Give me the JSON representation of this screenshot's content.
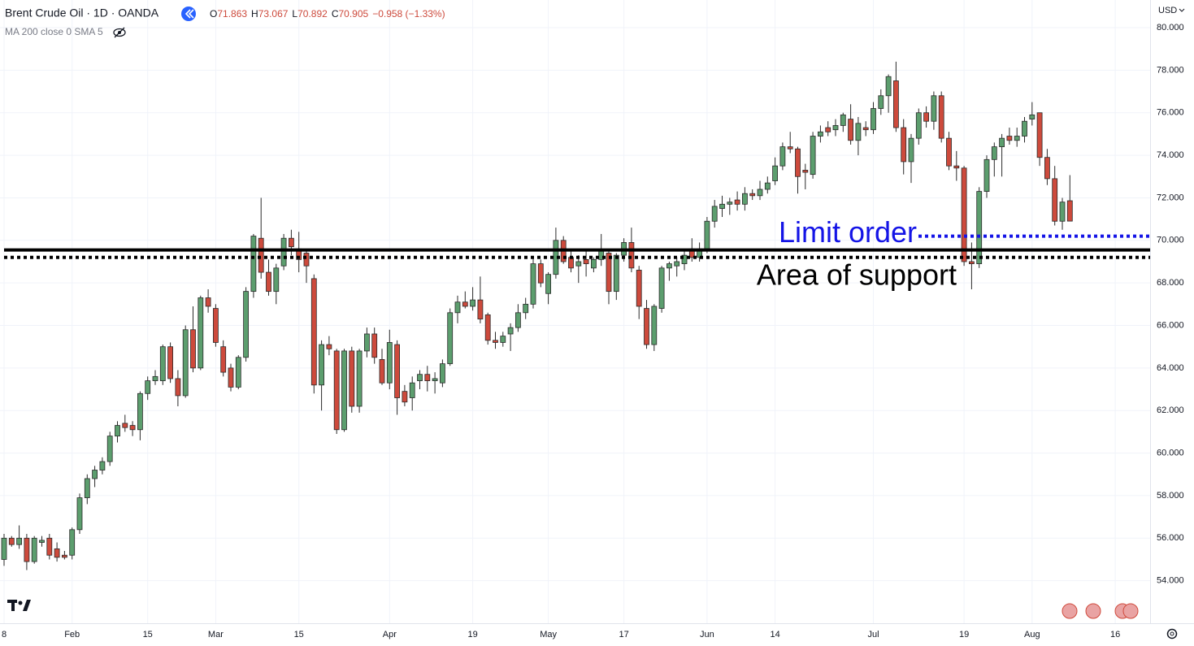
{
  "chart_data": {
    "type": "candlestick",
    "title": "Brent Crude Oil · 1D · OANDA",
    "legend_items": [
      "O",
      "71.863",
      "H",
      "73.067",
      "L",
      "70.892",
      "C",
      "70.905",
      "−0.958 (−1.33%)"
    ],
    "indicator": "MA 200 close 0 SMA 5",
    "currency": "USD",
    "up_color": "#5c9e6e",
    "down_color": "#cd4a3c",
    "border_color": "#2a2a2a",
    "candles": [
      [
        55.0,
        56.2,
        54.7,
        56.0
      ],
      [
        56.0,
        56.1,
        55.6,
        55.7
      ],
      [
        55.7,
        56.6,
        55.5,
        56.0
      ],
      [
        56.0,
        56.2,
        54.5,
        54.9
      ],
      [
        54.9,
        56.1,
        54.8,
        56.0
      ],
      [
        55.8,
        56.1,
        55.6,
        55.9
      ],
      [
        56.0,
        56.2,
        55.0,
        55.2
      ],
      [
        55.5,
        55.8,
        54.9,
        55.1
      ],
      [
        55.2,
        55.4,
        55.0,
        55.1
      ],
      [
        55.2,
        56.5,
        55.0,
        56.4
      ],
      [
        56.4,
        58.1,
        56.2,
        57.9
      ],
      [
        57.9,
        59.0,
        57.6,
        58.8
      ],
      [
        58.8,
        59.4,
        58.4,
        59.2
      ],
      [
        59.2,
        59.8,
        59.0,
        59.6
      ],
      [
        59.6,
        61.0,
        59.4,
        60.8
      ],
      [
        60.8,
        61.5,
        60.5,
        61.3
      ],
      [
        61.4,
        61.8,
        61.0,
        61.2
      ],
      [
        61.3,
        61.5,
        60.8,
        61.1
      ],
      [
        61.1,
        62.9,
        60.6,
        62.8
      ],
      [
        62.8,
        63.6,
        62.5,
        63.4
      ],
      [
        63.4,
        63.9,
        63.2,
        63.6
      ],
      [
        63.4,
        65.1,
        63.2,
        65.0
      ],
      [
        65.0,
        65.2,
        63.3,
        63.5
      ],
      [
        63.5,
        63.9,
        62.2,
        62.7
      ],
      [
        62.7,
        66.0,
        62.6,
        65.8
      ],
      [
        65.8,
        66.9,
        63.8,
        64.0
      ],
      [
        64.0,
        67.4,
        63.9,
        67.3
      ],
      [
        67.3,
        67.7,
        66.6,
        66.9
      ],
      [
        66.8,
        67.0,
        65.0,
        65.2
      ],
      [
        65.0,
        65.3,
        63.6,
        63.8
      ],
      [
        64.0,
        64.2,
        62.9,
        63.1
      ],
      [
        63.1,
        64.6,
        63.0,
        64.5
      ],
      [
        64.5,
        67.8,
        64.3,
        67.6
      ],
      [
        67.6,
        70.3,
        67.3,
        70.2
      ],
      [
        70.1,
        72.0,
        68.2,
        68.5
      ],
      [
        68.5,
        69.1,
        67.4,
        67.6
      ],
      [
        67.6,
        68.9,
        67.0,
        68.7
      ],
      [
        68.8,
        70.3,
        68.6,
        70.1
      ],
      [
        70.1,
        70.5,
        69.3,
        69.7
      ],
      [
        69.6,
        70.4,
        68.5,
        69.1
      ],
      [
        69.4,
        69.6,
        68.0,
        68.8
      ],
      [
        68.2,
        68.4,
        62.8,
        63.2
      ],
      [
        63.2,
        65.3,
        62.0,
        65.1
      ],
      [
        65.1,
        65.5,
        64.6,
        64.9
      ],
      [
        64.8,
        64.9,
        60.9,
        61.1
      ],
      [
        61.1,
        64.9,
        61.0,
        64.8
      ],
      [
        64.8,
        65.0,
        61.9,
        62.2
      ],
      [
        62.2,
        64.9,
        61.9,
        64.8
      ],
      [
        64.8,
        65.9,
        64.5,
        65.6
      ],
      [
        65.6,
        65.9,
        64.2,
        64.5
      ],
      [
        64.4,
        64.9,
        63.2,
        63.3
      ],
      [
        63.3,
        65.8,
        63.0,
        65.2
      ],
      [
        65.1,
        65.3,
        61.8,
        62.6
      ],
      [
        62.9,
        63.2,
        62.2,
        62.4
      ],
      [
        62.6,
        63.6,
        62.0,
        63.3
      ],
      [
        63.4,
        63.9,
        63.0,
        63.7
      ],
      [
        63.7,
        64.1,
        62.9,
        63.4
      ],
      [
        63.4,
        63.8,
        62.8,
        63.5
      ],
      [
        63.3,
        64.4,
        63.1,
        64.2
      ],
      [
        64.2,
        66.8,
        64.1,
        66.6
      ],
      [
        66.6,
        67.4,
        66.1,
        67.1
      ],
      [
        67.1,
        67.6,
        66.8,
        66.9
      ],
      [
        66.9,
        67.8,
        66.7,
        67.2
      ],
      [
        67.2,
        68.3,
        66.1,
        66.3
      ],
      [
        66.5,
        66.6,
        65.1,
        65.3
      ],
      [
        65.3,
        65.7,
        64.9,
        65.2
      ],
      [
        65.2,
        65.7,
        65.0,
        65.5
      ],
      [
        65.6,
        66.1,
        64.8,
        65.9
      ],
      [
        65.9,
        67.0,
        65.7,
        66.6
      ],
      [
        66.6,
        67.3,
        66.3,
        67.0
      ],
      [
        67.0,
        69.2,
        66.8,
        68.9
      ],
      [
        68.9,
        69.1,
        67.8,
        68.0
      ],
      [
        67.5,
        68.5,
        67.0,
        68.4
      ],
      [
        68.4,
        70.6,
        68.2,
        70.0
      ],
      [
        70.0,
        70.2,
        68.9,
        69.0
      ],
      [
        69.2,
        69.5,
        68.5,
        68.7
      ],
      [
        68.8,
        69.3,
        68.0,
        69.0
      ],
      [
        69.1,
        69.5,
        68.3,
        68.9
      ],
      [
        68.7,
        69.2,
        68.5,
        69.1
      ],
      [
        69.1,
        70.3,
        68.8,
        69.5
      ],
      [
        69.4,
        69.6,
        67.0,
        67.6
      ],
      [
        67.6,
        69.4,
        67.2,
        69.3
      ],
      [
        69.3,
        70.1,
        69.0,
        69.9
      ],
      [
        69.9,
        70.6,
        68.5,
        68.7
      ],
      [
        68.6,
        68.8,
        66.3,
        66.9
      ],
      [
        66.8,
        67.2,
        64.9,
        65.1
      ],
      [
        65.1,
        67.0,
        64.8,
        66.9
      ],
      [
        66.8,
        68.8,
        66.6,
        68.7
      ],
      [
        68.7,
        69.0,
        68.1,
        68.9
      ],
      [
        68.8,
        69.2,
        68.3,
        69.0
      ],
      [
        68.9,
        69.5,
        68.6,
        69.3
      ],
      [
        69.6,
        70.1,
        69.0,
        69.2
      ],
      [
        69.2,
        69.9,
        69.0,
        69.6
      ],
      [
        69.6,
        71.1,
        69.4,
        70.9
      ],
      [
        70.9,
        71.9,
        70.6,
        71.6
      ],
      [
        71.5,
        72.1,
        71.1,
        71.7
      ],
      [
        71.7,
        72.0,
        71.2,
        71.8
      ],
      [
        71.9,
        72.3,
        71.4,
        71.7
      ],
      [
        71.7,
        72.5,
        71.4,
        72.2
      ],
      [
        72.2,
        72.4,
        71.9,
        72.1
      ],
      [
        72.1,
        72.8,
        71.9,
        72.4
      ],
      [
        72.4,
        73.0,
        72.2,
        72.7
      ],
      [
        72.8,
        73.9,
        72.6,
        73.5
      ],
      [
        73.5,
        74.6,
        73.3,
        74.4
      ],
      [
        74.4,
        75.1,
        74.1,
        74.3
      ],
      [
        74.3,
        74.4,
        72.2,
        73.0
      ],
      [
        73.3,
        73.6,
        72.4,
        73.2
      ],
      [
        73.1,
        75.1,
        72.9,
        74.9
      ],
      [
        74.9,
        75.4,
        74.6,
        75.1
      ],
      [
        75.3,
        75.6,
        74.9,
        75.1
      ],
      [
        75.2,
        75.7,
        74.9,
        75.4
      ],
      [
        75.4,
        76.0,
        75.1,
        75.9
      ],
      [
        75.7,
        76.4,
        74.5,
        74.7
      ],
      [
        74.7,
        75.8,
        74.0,
        75.5
      ],
      [
        75.3,
        75.6,
        74.9,
        75.2
      ],
      [
        75.2,
        76.5,
        75.0,
        76.2
      ],
      [
        76.2,
        77.1,
        75.9,
        76.8
      ],
      [
        76.8,
        77.8,
        76.0,
        77.7
      ],
      [
        77.5,
        78.4,
        75.1,
        75.3
      ],
      [
        75.3,
        75.7,
        73.1,
        73.7
      ],
      [
        73.7,
        75.0,
        72.7,
        74.8
      ],
      [
        74.8,
        76.2,
        74.5,
        76.0
      ],
      [
        76.0,
        76.3,
        75.3,
        75.6
      ],
      [
        75.6,
        77.0,
        75.2,
        76.8
      ],
      [
        76.8,
        77.0,
        74.6,
        74.8
      ],
      [
        74.8,
        75.1,
        73.3,
        73.5
      ],
      [
        73.5,
        74.2,
        72.8,
        73.4
      ],
      [
        73.4,
        73.5,
        68.8,
        69.0
      ],
      [
        69.0,
        69.9,
        67.7,
        68.9
      ],
      [
        68.9,
        72.5,
        68.7,
        72.3
      ],
      [
        72.3,
        74.0,
        72.0,
        73.8
      ],
      [
        73.8,
        74.6,
        73.0,
        74.4
      ],
      [
        74.4,
        75.0,
        73.0,
        74.8
      ],
      [
        74.9,
        75.3,
        74.5,
        74.7
      ],
      [
        74.7,
        75.3,
        74.4,
        74.9
      ],
      [
        74.9,
        75.8,
        74.6,
        75.6
      ],
      [
        75.7,
        76.5,
        75.4,
        75.9
      ],
      [
        76.0,
        76.0,
        73.5,
        73.9
      ],
      [
        73.9,
        74.3,
        72.6,
        72.9
      ],
      [
        72.9,
        73.5,
        70.7,
        70.9
      ],
      [
        70.9,
        72.0,
        70.5,
        71.8
      ],
      [
        71.863,
        73.067,
        70.892,
        70.905
      ]
    ],
    "xticks": [
      {
        "value": 0,
        "label": "8"
      },
      {
        "value": 9,
        "label": "Feb"
      },
      {
        "value": 19,
        "label": "15"
      },
      {
        "value": 28,
        "label": "Mar"
      },
      {
        "value": 39,
        "label": "15"
      },
      {
        "value": 51,
        "label": "Apr"
      },
      {
        "value": 62,
        "label": "19"
      },
      {
        "value": 72,
        "label": "May"
      },
      {
        "value": 82,
        "label": "17"
      },
      {
        "value": 93,
        "label": "Jun"
      },
      {
        "value": 102,
        "label": "14"
      },
      {
        "value": 115,
        "label": "Jul"
      },
      {
        "value": 127,
        "label": "19"
      },
      {
        "value": 136,
        "label": "Aug"
      },
      {
        "value": 147,
        "label": "16"
      }
    ],
    "ylim": [
      52,
      81.3
    ],
    "yticks": [
      {
        "value": 54,
        "label": "54.000"
      },
      {
        "value": 56,
        "label": "56.000"
      },
      {
        "value": 58,
        "label": "58.000"
      },
      {
        "value": 60,
        "label": "60.000"
      },
      {
        "value": 62,
        "label": "62.000"
      },
      {
        "value": 64,
        "label": "64.000"
      },
      {
        "value": 66,
        "label": "66.000"
      },
      {
        "value": 68,
        "label": "68.000"
      },
      {
        "value": 70,
        "label": "70.000"
      },
      {
        "value": 72,
        "label": "72.000"
      },
      {
        "value": 74,
        "label": "74.000"
      },
      {
        "value": 76,
        "label": "76.000"
      },
      {
        "value": 78,
        "label": "78.000"
      },
      {
        "value": 80,
        "label": "80.000"
      }
    ],
    "grid": true,
    "hlines": [
      {
        "value": 69.55,
        "style": "solid",
        "color": "#000000",
        "span": "full"
      },
      {
        "value": 69.2,
        "style": "dotted",
        "color": "#000000",
        "span": "full"
      },
      {
        "value": 70.2,
        "style": "dotted",
        "color": "#1414e6",
        "span": "right"
      }
    ],
    "annotations": [
      {
        "text": "Limit order",
        "value": 70.2,
        "color": "#1414e6"
      },
      {
        "text": "Area of support",
        "value": 68.2,
        "color": "#000000"
      }
    ]
  }
}
